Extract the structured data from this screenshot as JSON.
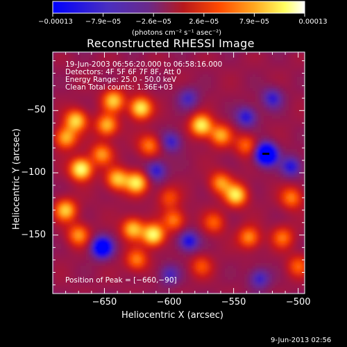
{
  "chart_data": {
    "type": "heatmap",
    "title": "Reconstructed RHESSI Image",
    "xlabel": "Heliocentric X (arcsec)",
    "ylabel": "Heliocentric Y (arcsec)",
    "xlim": [
      -690,
      -495
    ],
    "ylim": [
      -197,
      -3
    ],
    "x_ticks": [
      -650,
      -600,
      -550,
      -500
    ],
    "x_tick_labels": [
      "−650",
      "−600",
      "−550",
      "−500"
    ],
    "y_ticks": [
      -50,
      -100,
      -150
    ],
    "y_tick_labels": [
      "−50",
      "−100",
      "−150"
    ],
    "colorbar": {
      "min": -0.00013,
      "max": 0.00013,
      "tick_labels": [
        "−0.00013",
        "−7.9e−05",
        "−2.6e−05",
        "2.6e−05",
        "7.9e−05",
        "0.00013"
      ],
      "unit_label": "(photons cm⁻² s⁻¹ asec⁻²)",
      "colormap": [
        "#0000ff",
        "#5a2aa8",
        "#8a1a5a",
        "#c8141a",
        "#ff4a00",
        "#ffb020",
        "#ffff60",
        "#ffffff"
      ]
    },
    "annotations": {
      "time": "19-Jun-2003 06:56:20.000 to 06:58:16.000",
      "detectors": "Detectors: 4F 5F 6F 7F 8F, Att 0",
      "energy": "Energy Range: 25.0 - 50.0 keV",
      "clean": "Clean    Total counts: 1.36E+03",
      "peak": "Position of Peak = [−660,−90]"
    },
    "peak_position": [
      -660,
      -90
    ],
    "sources": [
      {
        "x": -668,
        "y": -97,
        "v": 1.0
      },
      {
        "x": -643,
        "y": -42,
        "v": 0.75
      },
      {
        "x": -622,
        "y": -48,
        "v": 0.9
      },
      {
        "x": -672,
        "y": -58,
        "v": 0.8
      },
      {
        "x": -648,
        "y": -62,
        "v": 0.7
      },
      {
        "x": -640,
        "y": -105,
        "v": 0.75
      },
      {
        "x": -625,
        "y": -108,
        "v": 0.85
      },
      {
        "x": -652,
        "y": -85,
        "v": 0.6
      },
      {
        "x": -680,
        "y": -72,
        "v": 0.7
      },
      {
        "x": -615,
        "y": -78,
        "v": 0.55
      },
      {
        "x": -680,
        "y": -130,
        "v": 0.75
      },
      {
        "x": -670,
        "y": -150,
        "v": 0.6
      },
      {
        "x": -628,
        "y": -145,
        "v": 0.75
      },
      {
        "x": -612,
        "y": -150,
        "v": 0.95
      },
      {
        "x": -596,
        "y": -138,
        "v": 0.55
      },
      {
        "x": -625,
        "y": -170,
        "v": 0.55
      },
      {
        "x": -575,
        "y": -62,
        "v": 0.9
      },
      {
        "x": -560,
        "y": -70,
        "v": 0.65
      },
      {
        "x": -560,
        "y": -108,
        "v": 0.6
      },
      {
        "x": -540,
        "y": -78,
        "v": 0.5
      },
      {
        "x": -548,
        "y": -118,
        "v": 0.85
      },
      {
        "x": -538,
        "y": -152,
        "v": 0.6
      },
      {
        "x": -565,
        "y": -140,
        "v": 0.45
      },
      {
        "x": -505,
        "y": -120,
        "v": 0.55
      },
      {
        "x": -512,
        "y": -152,
        "v": 0.5
      },
      {
        "x": -500,
        "y": -175,
        "v": 0.45
      },
      {
        "x": -575,
        "y": -175,
        "v": 0.4
      },
      {
        "x": -600,
        "y": -120,
        "v": 0.4
      },
      {
        "x": -525,
        "y": -85,
        "v": -1.0
      },
      {
        "x": -652,
        "y": -160,
        "v": -0.75
      },
      {
        "x": -610,
        "y": -98,
        "v": -0.45
      },
      {
        "x": -598,
        "y": -75,
        "v": -0.4
      },
      {
        "x": -540,
        "y": -55,
        "v": -0.45
      },
      {
        "x": -585,
        "y": -40,
        "v": -0.35
      },
      {
        "x": -520,
        "y": -40,
        "v": -0.4
      },
      {
        "x": -600,
        "y": -182,
        "v": -0.35
      },
      {
        "x": -585,
        "y": -155,
        "v": -0.5
      },
      {
        "x": -505,
        "y": -95,
        "v": -0.45
      },
      {
        "x": -530,
        "y": -185,
        "v": -0.4
      }
    ]
  },
  "footer": {
    "date": "9-Jun-2013 02:56"
  }
}
